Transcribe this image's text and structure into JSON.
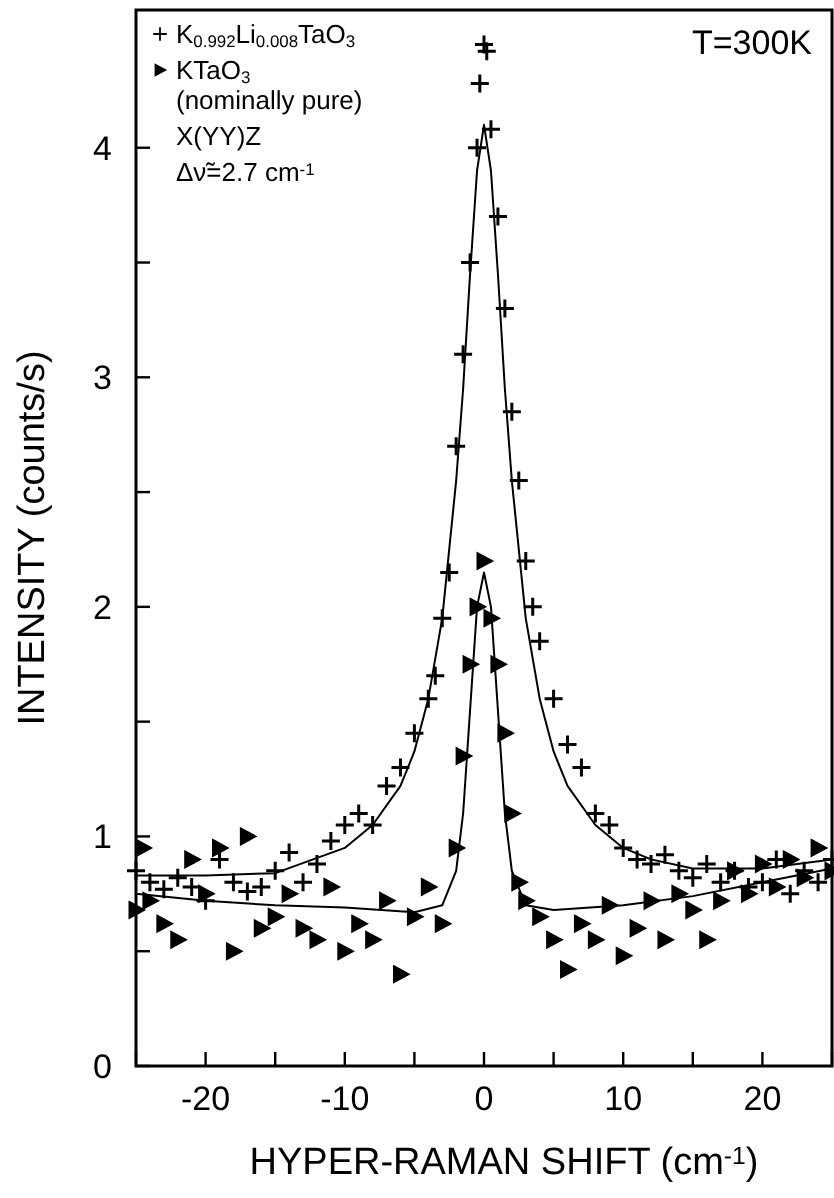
{
  "chart_data": {
    "type": "scatter",
    "title": "T=300K",
    "xlabel": "HYPER-RAMAN SHIFT (cm$^{-1}$)",
    "ylabel": "INTENSITY (counts/s)",
    "xlim": [
      -25,
      25
    ],
    "xticks": [
      {
        "value": -25,
        "label": null
      },
      -20,
      {
        "value": -15,
        "label": null
      },
      -10,
      {
        "value": -5,
        "label": null
      },
      0,
      {
        "value": 5,
        "label": null
      },
      10,
      {
        "value": 15,
        "label": null
      },
      20,
      {
        "value": 25,
        "label": null
      }
    ],
    "ylim": [
      0,
      4.6
    ],
    "yticks": [
      0,
      {
        "value": 0.5,
        "label": null
      },
      1,
      {
        "value": 1.5,
        "label": null
      },
      2,
      {
        "value": 2.5,
        "label": null
      },
      3,
      {
        "value": 3.5,
        "label": null
      },
      4
    ],
    "grid": false,
    "legend": "top left",
    "annotations": [
      "(nominally pure)",
      "X(YY)Z",
      "Δν̃=2.7 cm$^{-1}$"
    ],
    "series": [
      {
        "name": "K$_{0.992}$Li$_{0.008}$TaO$_{3}$",
        "color": "#000000",
        "marker": "cross",
        "x": [
          -25,
          -24,
          -23,
          -22,
          -21,
          -20,
          -19,
          -18,
          -17,
          -16,
          -15,
          -14,
          -13,
          -12,
          -11,
          -10,
          -9,
          -8,
          -7,
          -6,
          -5,
          -4,
          -3.5,
          -3,
          -2.5,
          -2,
          -1.5,
          -1,
          -0.5,
          0,
          0.2,
          -0.3,
          0.5,
          1,
          1.5,
          2,
          2.5,
          3,
          3.5,
          4,
          5,
          6,
          7,
          8,
          9,
          10,
          11,
          12,
          13,
          14,
          15,
          16,
          17,
          18,
          19,
          20,
          21,
          22,
          23,
          24,
          25
        ],
        "values": [
          0.85,
          0.8,
          0.77,
          0.82,
          0.78,
          0.72,
          0.9,
          0.8,
          0.76,
          0.78,
          0.85,
          0.93,
          0.8,
          0.88,
          0.98,
          1.05,
          1.1,
          1.05,
          1.22,
          1.3,
          1.45,
          1.6,
          1.7,
          1.95,
          2.15,
          2.7,
          3.1,
          3.5,
          4.0,
          4.45,
          4.42,
          4.28,
          4.08,
          3.7,
          3.3,
          2.85,
          2.55,
          2.2,
          2.0,
          1.85,
          1.6,
          1.4,
          1.3,
          1.1,
          1.05,
          0.95,
          0.9,
          0.88,
          0.92,
          0.85,
          0.82,
          0.88,
          0.8,
          0.85,
          0.78,
          0.8,
          0.9,
          0.75,
          0.85,
          0.8,
          0.9
        ]
      },
      {
        "name": "KTaO$_{3}$",
        "color": "#000000",
        "marker": "triangle",
        "x": [
          -25,
          -24.5,
          -24,
          -23,
          -22,
          -21,
          -20,
          -19,
          -18,
          -17,
          -16,
          -15,
          -14,
          -13,
          -12,
          -11,
          -10,
          -9,
          -8,
          -7,
          -6,
          -5,
          -4,
          -3,
          -2,
          -1.5,
          -1,
          -0.5,
          0,
          0.5,
          1,
          1.5,
          2,
          2.5,
          3,
          4,
          5,
          6,
          7,
          8,
          9,
          10,
          11,
          12,
          13,
          14,
          15,
          16,
          17,
          18,
          19,
          20,
          21,
          22,
          23,
          24,
          25
        ],
        "values": [
          0.68,
          0.95,
          0.72,
          0.62,
          0.55,
          0.9,
          0.75,
          0.95,
          0.5,
          1.0,
          0.6,
          0.65,
          0.75,
          0.6,
          0.55,
          0.78,
          0.5,
          0.62,
          0.55,
          0.72,
          0.4,
          0.65,
          0.78,
          0.62,
          0.95,
          1.35,
          1.75,
          2.0,
          2.2,
          1.95,
          1.75,
          1.45,
          1.1,
          0.8,
          0.72,
          0.65,
          0.55,
          0.42,
          0.62,
          0.55,
          0.7,
          0.48,
          0.6,
          0.72,
          0.55,
          0.75,
          0.68,
          0.55,
          0.72,
          0.85,
          0.75,
          0.88,
          0.78,
          0.9,
          0.82,
          0.95,
          0.85
        ]
      },
      {
        "type": "line",
        "color": "#000000",
        "marker": "none",
        "line_style": "solid",
        "x": [
          -25,
          -20,
          -15,
          -10,
          -8,
          -6,
          -5,
          -4,
          -3,
          -2,
          -1.5,
          -1,
          -0.5,
          0,
          0.5,
          1,
          1.5,
          2,
          3,
          4,
          5,
          6,
          8,
          10,
          12,
          15,
          20,
          25
        ],
        "values": [
          0.83,
          0.83,
          0.84,
          0.95,
          1.05,
          1.22,
          1.37,
          1.6,
          1.95,
          2.55,
          2.95,
          3.45,
          3.9,
          4.1,
          3.9,
          3.45,
          2.95,
          2.55,
          1.95,
          1.6,
          1.37,
          1.22,
          1.05,
          0.95,
          0.9,
          0.86,
          0.86,
          0.9
        ]
      },
      {
        "type": "line",
        "color": "#000000",
        "marker": "none",
        "line_style": "solid",
        "x": [
          -25,
          -20,
          -15,
          -10,
          -5,
          -3,
          -2,
          -1.5,
          -1,
          -0.5,
          0,
          0.5,
          1,
          1.5,
          2,
          3,
          5,
          10,
          15,
          20,
          25
        ],
        "values": [
          0.75,
          0.72,
          0.7,
          0.69,
          0.67,
          0.7,
          0.85,
          1.1,
          1.55,
          2.0,
          2.15,
          2.0,
          1.55,
          1.1,
          0.85,
          0.7,
          0.68,
          0.7,
          0.74,
          0.8,
          0.86
        ]
      }
    ]
  }
}
